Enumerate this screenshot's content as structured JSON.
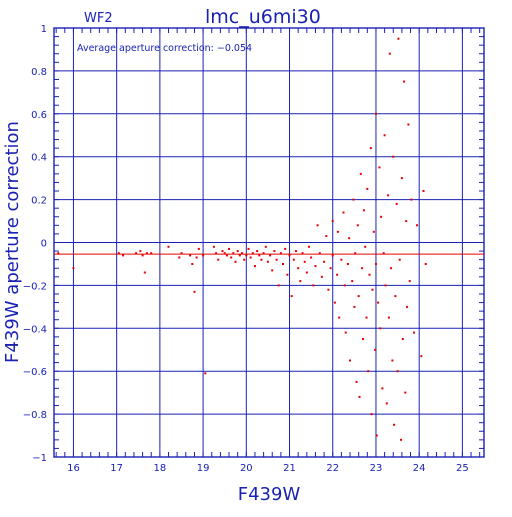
{
  "chart_data": {
    "type": "scatter",
    "title": "lmc_u6mi30",
    "chip": "WF2",
    "annotation": "Average aperture correction: −0.054",
    "xlabel": "F439W",
    "ylabel": "F439W aperture correction",
    "xlim": [
      15.55,
      25.5
    ],
    "ylim": [
      -1.0,
      1.0
    ],
    "x_ticks": [
      16,
      17,
      18,
      19,
      20,
      21,
      22,
      23,
      24,
      25
    ],
    "y_ticks": [
      -1,
      -0.8,
      -0.6,
      -0.4,
      -0.2,
      0,
      0.2,
      0.4,
      0.6,
      0.8,
      1
    ],
    "x_tick_labels": [
      "16",
      "17",
      "18",
      "19",
      "20",
      "21",
      "22",
      "23",
      "24",
      "25"
    ],
    "y_tick_labels": [
      "−1",
      "−0.8",
      "−0.6",
      "−0.4",
      "−0.2",
      "0",
      "0.2",
      "0.4",
      "0.6",
      "0.8",
      "1"
    ],
    "grid": true,
    "reference_line_y": -0.054,
    "colors": {
      "axes": "#1a22b4",
      "points": "#e60000",
      "reference_line": "#e60000",
      "background": "#ffffff"
    },
    "series": [
      {
        "values": [
          [
            15.65,
            -0.05
          ],
          [
            16.0,
            -0.12
          ],
          [
            17.05,
            -0.05
          ],
          [
            17.15,
            -0.06
          ],
          [
            17.45,
            -0.05
          ],
          [
            17.55,
            -0.04
          ],
          [
            17.6,
            -0.06
          ],
          [
            17.7,
            -0.05
          ],
          [
            17.65,
            -0.14
          ],
          [
            17.8,
            -0.05
          ],
          [
            18.2,
            -0.02
          ],
          [
            18.45,
            -0.07
          ],
          [
            18.5,
            -0.05
          ],
          [
            18.7,
            -0.06
          ],
          [
            18.75,
            -0.1
          ],
          [
            18.85,
            -0.07
          ],
          [
            18.8,
            -0.23
          ],
          [
            18.9,
            -0.03
          ],
          [
            19.0,
            -0.06
          ],
          [
            19.05,
            -0.61
          ],
          [
            19.25,
            -0.02
          ],
          [
            19.3,
            -0.05
          ],
          [
            19.35,
            -0.08
          ],
          [
            19.45,
            -0.04
          ],
          [
            19.5,
            -0.05
          ],
          [
            19.55,
            -0.06
          ],
          [
            19.6,
            -0.03
          ],
          [
            19.65,
            -0.07
          ],
          [
            19.7,
            -0.05
          ],
          [
            19.75,
            -0.09
          ],
          [
            19.8,
            -0.04
          ],
          [
            19.85,
            -0.06
          ],
          [
            19.9,
            -0.05
          ],
          [
            19.95,
            -0.08
          ],
          [
            20.0,
            -0.06
          ],
          [
            20.05,
            -0.03
          ],
          [
            20.1,
            -0.07
          ],
          [
            20.15,
            -0.05
          ],
          [
            20.2,
            -0.11
          ],
          [
            20.25,
            -0.04
          ],
          [
            20.3,
            -0.06
          ],
          [
            20.35,
            -0.08
          ],
          [
            20.4,
            -0.05
          ],
          [
            20.45,
            -0.02
          ],
          [
            20.5,
            -0.09
          ],
          [
            20.55,
            -0.06
          ],
          [
            20.6,
            -0.13
          ],
          [
            20.65,
            -0.04
          ],
          [
            20.7,
            -0.08
          ],
          [
            20.75,
            -0.2
          ],
          [
            20.8,
            -0.05
          ],
          [
            20.85,
            -0.1
          ],
          [
            20.9,
            -0.03
          ],
          [
            20.95,
            -0.15
          ],
          [
            21.0,
            -0.06
          ],
          [
            21.05,
            -0.25
          ],
          [
            21.1,
            -0.08
          ],
          [
            21.15,
            -0.04
          ],
          [
            21.2,
            -0.12
          ],
          [
            21.25,
            -0.18
          ],
          [
            21.3,
            -0.05
          ],
          [
            21.35,
            -0.09
          ],
          [
            21.4,
            -0.14
          ],
          [
            21.45,
            -0.02
          ],
          [
            21.5,
            -0.07
          ],
          [
            21.55,
            -0.2
          ],
          [
            21.6,
            -0.11
          ],
          [
            21.65,
            0.08
          ],
          [
            21.7,
            -0.05
          ],
          [
            21.75,
            -0.16
          ],
          [
            21.8,
            -0.09
          ],
          [
            21.85,
            0.03
          ],
          [
            21.9,
            -0.22
          ],
          [
            21.95,
            -0.12
          ],
          [
            22.0,
            -0.06
          ],
          [
            22.0,
            0.1
          ],
          [
            22.05,
            -0.28
          ],
          [
            22.1,
            -0.15
          ],
          [
            22.12,
            0.05
          ],
          [
            22.15,
            -0.35
          ],
          [
            22.2,
            -0.08
          ],
          [
            22.25,
            0.14
          ],
          [
            22.28,
            -0.2
          ],
          [
            22.3,
            -0.42
          ],
          [
            22.35,
            -0.1
          ],
          [
            22.38,
            0.02
          ],
          [
            22.4,
            -0.55
          ],
          [
            22.45,
            -0.18
          ],
          [
            22.48,
            0.2
          ],
          [
            22.5,
            -0.3
          ],
          [
            22.52,
            -0.05
          ],
          [
            22.55,
            -0.65
          ],
          [
            22.58,
            0.08
          ],
          [
            22.6,
            -0.25
          ],
          [
            22.62,
            -0.72
          ],
          [
            22.65,
            0.32
          ],
          [
            22.68,
            -0.12
          ],
          [
            22.7,
            -0.45
          ],
          [
            22.72,
            0.15
          ],
          [
            22.75,
            -0.02
          ],
          [
            22.78,
            -0.35
          ],
          [
            22.8,
            0.25
          ],
          [
            22.82,
            -0.6
          ],
          [
            22.85,
            -0.15
          ],
          [
            22.88,
            0.44
          ],
          [
            22.9,
            -0.8
          ],
          [
            22.92,
            -0.22
          ],
          [
            22.95,
            0.05
          ],
          [
            22.98,
            -0.5
          ],
          [
            23.0,
            -0.1
          ],
          [
            23.0,
            0.6
          ],
          [
            23.02,
            -0.9
          ],
          [
            23.05,
            -0.28
          ],
          [
            23.08,
            0.35
          ],
          [
            23.1,
            -0.4
          ],
          [
            23.12,
            0.12
          ],
          [
            23.15,
            -0.68
          ],
          [
            23.18,
            -0.05
          ],
          [
            23.2,
            0.5
          ],
          [
            23.22,
            -0.2
          ],
          [
            23.25,
            -0.75
          ],
          [
            23.28,
            0.22
          ],
          [
            23.3,
            -0.35
          ],
          [
            23.32,
            0.88
          ],
          [
            23.35,
            -0.12
          ],
          [
            23.38,
            -0.55
          ],
          [
            23.4,
            0.4
          ],
          [
            23.42,
            -0.85
          ],
          [
            23.45,
            -0.25
          ],
          [
            23.48,
            0.18
          ],
          [
            23.5,
            -0.6
          ],
          [
            23.52,
            0.95
          ],
          [
            23.55,
            -0.08
          ],
          [
            23.58,
            -0.92
          ],
          [
            23.6,
            0.3
          ],
          [
            23.62,
            -0.45
          ],
          [
            23.65,
            0.75
          ],
          [
            23.68,
            -0.7
          ],
          [
            23.7,
            0.1
          ],
          [
            23.72,
            -0.3
          ],
          [
            23.75,
            0.55
          ],
          [
            23.78,
            -0.18
          ],
          [
            23.82,
            0.2
          ],
          [
            23.88,
            -0.42
          ],
          [
            23.95,
            0.08
          ],
          [
            24.05,
            -0.53
          ],
          [
            24.1,
            0.24
          ],
          [
            24.15,
            -0.1
          ],
          [
            25.55,
            -0.06
          ]
        ]
      }
    ]
  }
}
